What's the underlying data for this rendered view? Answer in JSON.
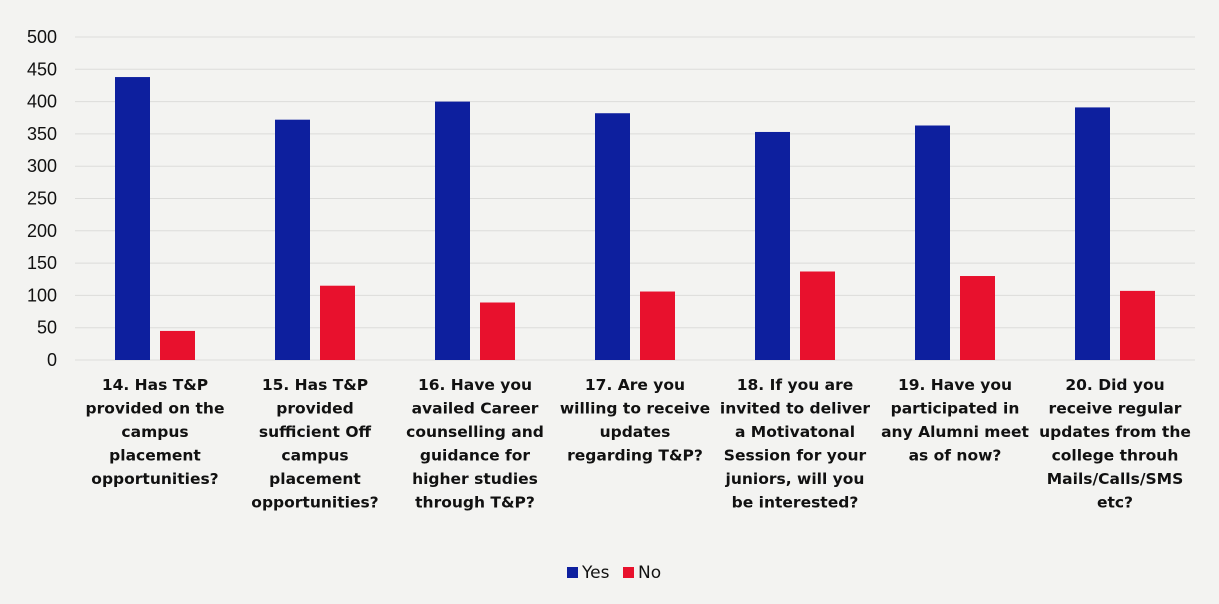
{
  "chart_data": {
    "type": "bar",
    "categories": [
      [
        "14. Has T&P",
        "provided on the",
        "campus",
        "placement",
        "opportunities?"
      ],
      [
        "15. Has T&P",
        "provided",
        "sufficient Off",
        "campus",
        "placement",
        "opportunities?"
      ],
      [
        "16. Have you",
        "availed Career",
        "counselling and",
        "guidance for",
        "higher studies",
        "through T&P?"
      ],
      [
        "17. Are you",
        "willing to receive",
        "updates",
        "regarding T&P?"
      ],
      [
        "18. If  you are",
        "invited to deliver",
        "a Motivatonal",
        "Session for your",
        "juniors, will you",
        "be interested?"
      ],
      [
        "19. Have you",
        "participated in",
        "any Alumni meet",
        "as of now?"
      ],
      [
        "20. Did you",
        "receive regular",
        "updates from the",
        "college throuh",
        "Mails/Calls/SMS",
        "etc?"
      ]
    ],
    "series": [
      {
        "name": "Yes",
        "color": "#0d1f9e",
        "values": [
          438,
          372,
          400,
          382,
          353,
          363,
          391
        ]
      },
      {
        "name": "No",
        "color": "#e8112d",
        "values": [
          45,
          115,
          89,
          106,
          137,
          130,
          107
        ]
      }
    ],
    "yticks": [
      "500",
      "450",
      "400",
      "350",
      "300",
      "250",
      "200",
      "150",
      "100",
      "50",
      "0"
    ],
    "ylim": [
      0,
      500
    ],
    "grid": true,
    "legend": "bottom-center",
    "title": "",
    "xlabel": "",
    "ylabel": ""
  }
}
